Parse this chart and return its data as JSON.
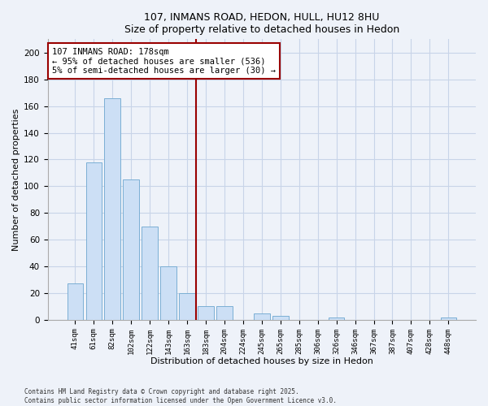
{
  "title": "107, INMANS ROAD, HEDON, HULL, HU12 8HU",
  "subtitle": "Size of property relative to detached houses in Hedon",
  "xlabel": "Distribution of detached houses by size in Hedon",
  "ylabel": "Number of detached properties",
  "bar_labels": [
    "41sqm",
    "61sqm",
    "82sqm",
    "102sqm",
    "122sqm",
    "143sqm",
    "163sqm",
    "183sqm",
    "204sqm",
    "224sqm",
    "245sqm",
    "265sqm",
    "285sqm",
    "306sqm",
    "326sqm",
    "346sqm",
    "367sqm",
    "387sqm",
    "407sqm",
    "428sqm",
    "448sqm"
  ],
  "bar_values": [
    27,
    118,
    166,
    105,
    70,
    40,
    20,
    10,
    10,
    0,
    5,
    3,
    0,
    0,
    2,
    0,
    0,
    0,
    0,
    0,
    2
  ],
  "bar_color": "#ccdff5",
  "bar_edge_color": "#7bafd4",
  "vline_color": "#990000",
  "annotation_text": "107 INMANS ROAD: 178sqm\n← 95% of detached houses are smaller (536)\n5% of semi-detached houses are larger (30) →",
  "annotation_box_color": "white",
  "annotation_box_edge": "#990000",
  "ylim": [
    0,
    210
  ],
  "yticks": [
    0,
    20,
    40,
    60,
    80,
    100,
    120,
    140,
    160,
    180,
    200
  ],
  "grid_color": "#c8d4e8",
  "footer_line1": "Contains HM Land Registry data © Crown copyright and database right 2025.",
  "footer_line2": "Contains public sector information licensed under the Open Government Licence v3.0.",
  "bg_color": "#eef2f9",
  "plot_bg_color": "#eef2f9"
}
